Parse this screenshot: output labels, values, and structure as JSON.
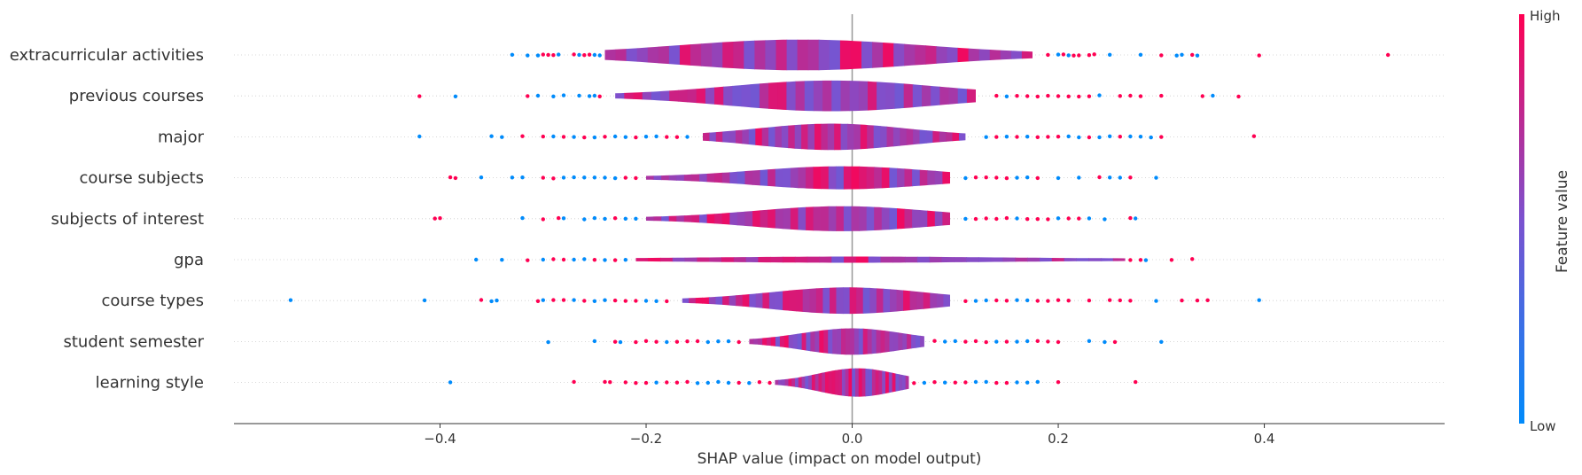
{
  "chart_data": {
    "type": "violin",
    "xlabel": "SHAP value (impact on model output)",
    "xlim": [
      -0.6,
      0.575
    ],
    "x_ticks": [
      -0.4,
      -0.2,
      0.0,
      0.2,
      0.4
    ],
    "x_tick_labels": [
      "−0.4",
      "−0.2",
      "0.0",
      "0.2",
      "0.4"
    ],
    "colorbar": {
      "label": "Feature value",
      "high_label": "High",
      "low_label": "Low",
      "high_color": "#ff0052",
      "low_color": "#008bfb",
      "mid_color": "#7c52cf"
    },
    "features": [
      {
        "name": "extracurricular activities",
        "min": -0.33,
        "max": 0.52,
        "q_low": -0.24,
        "q_high": 0.175,
        "width": 0.85,
        "center": -0.05,
        "outliers": [
          -0.33,
          -0.315,
          -0.305,
          -0.3,
          -0.295,
          -0.29,
          -0.285,
          -0.27,
          -0.265,
          -0.26,
          -0.255,
          -0.25,
          -0.245,
          0.19,
          0.2,
          0.205,
          0.21,
          0.215,
          0.22,
          0.23,
          0.235,
          0.25,
          0.28,
          0.3,
          0.315,
          0.32,
          0.33,
          0.335,
          0.395,
          0.52
        ]
      },
      {
        "name": "previous courses",
        "min": -0.42,
        "max": 0.375,
        "q_low": -0.23,
        "q_high": 0.12,
        "width": 0.85,
        "center": -0.02,
        "outliers": [
          -0.42,
          -0.385,
          -0.315,
          -0.305,
          -0.29,
          -0.28,
          -0.265,
          -0.255,
          -0.25,
          -0.245,
          0.14,
          0.15,
          0.16,
          0.17,
          0.18,
          0.19,
          0.2,
          0.21,
          0.22,
          0.23,
          0.24,
          0.26,
          0.27,
          0.28,
          0.3,
          0.34,
          0.35,
          0.375
        ]
      },
      {
        "name": "major",
        "min": -0.42,
        "max": 0.39,
        "q_low": -0.145,
        "q_high": 0.11,
        "width": 0.72,
        "center": -0.02,
        "outliers": [
          -0.42,
          -0.35,
          -0.34,
          -0.32,
          -0.3,
          -0.29,
          -0.28,
          -0.27,
          -0.26,
          -0.25,
          -0.24,
          -0.23,
          -0.22,
          -0.21,
          -0.2,
          -0.19,
          -0.18,
          -0.17,
          -0.16,
          0.13,
          0.14,
          0.15,
          0.16,
          0.17,
          0.18,
          0.19,
          0.2,
          0.21,
          0.22,
          0.23,
          0.24,
          0.25,
          0.26,
          0.27,
          0.28,
          0.29,
          0.3,
          0.39
        ]
      },
      {
        "name": "course subjects",
        "min": -0.39,
        "max": 0.295,
        "q_low": -0.2,
        "q_high": 0.095,
        "width": 0.62,
        "center": -0.01,
        "outliers": [
          -0.39,
          -0.385,
          -0.36,
          -0.33,
          -0.32,
          -0.3,
          -0.29,
          -0.28,
          -0.27,
          -0.26,
          -0.25,
          -0.24,
          -0.23,
          -0.22,
          -0.21,
          0.11,
          0.12,
          0.13,
          0.14,
          0.15,
          0.16,
          0.17,
          0.18,
          0.2,
          0.22,
          0.24,
          0.25,
          0.26,
          0.27,
          0.295
        ]
      },
      {
        "name": "subjects of interest",
        "min": -0.405,
        "max": 0.275,
        "q_low": -0.2,
        "q_high": 0.095,
        "width": 0.68,
        "center": -0.01,
        "outliers": [
          -0.405,
          -0.4,
          -0.32,
          -0.3,
          -0.285,
          -0.28,
          -0.26,
          -0.25,
          -0.24,
          -0.23,
          -0.22,
          -0.21,
          0.11,
          0.12,
          0.13,
          0.14,
          0.15,
          0.16,
          0.17,
          0.18,
          0.19,
          0.2,
          0.21,
          0.22,
          0.23,
          0.245,
          0.27,
          0.275
        ]
      },
      {
        "name": "gpa",
        "min": -0.365,
        "max": 0.33,
        "q_low": -0.21,
        "q_high": 0.265,
        "width": 0.12,
        "center": 0.0,
        "outliers": [
          -0.365,
          -0.34,
          -0.315,
          -0.3,
          -0.29,
          -0.28,
          -0.27,
          -0.26,
          -0.25,
          -0.24,
          -0.23,
          -0.22,
          0.27,
          0.28,
          0.285,
          0.31,
          0.33
        ]
      },
      {
        "name": "course types",
        "min": -0.545,
        "max": 0.395,
        "q_low": -0.165,
        "q_high": 0.095,
        "width": 0.72,
        "center": -0.005,
        "outliers": [
          -0.545,
          -0.415,
          -0.36,
          -0.35,
          -0.345,
          -0.305,
          -0.3,
          -0.29,
          -0.28,
          -0.27,
          -0.26,
          -0.25,
          -0.24,
          -0.23,
          -0.22,
          -0.21,
          -0.2,
          -0.19,
          -0.18,
          0.11,
          0.12,
          0.13,
          0.14,
          0.15,
          0.16,
          0.17,
          0.18,
          0.19,
          0.2,
          0.21,
          0.23,
          0.25,
          0.26,
          0.27,
          0.295,
          0.32,
          0.335,
          0.345,
          0.395
        ]
      },
      {
        "name": "student semester",
        "min": -0.295,
        "max": 0.3,
        "q_low": -0.1,
        "q_high": 0.07,
        "width": 0.72,
        "center": 0.0,
        "outliers": [
          -0.295,
          -0.25,
          -0.23,
          -0.225,
          -0.21,
          -0.2,
          -0.19,
          -0.18,
          -0.17,
          -0.16,
          -0.15,
          -0.14,
          -0.13,
          -0.12,
          -0.11,
          0.08,
          0.09,
          0.1,
          0.11,
          0.12,
          0.13,
          0.14,
          0.15,
          0.16,
          0.17,
          0.18,
          0.19,
          0.2,
          0.23,
          0.245,
          0.255,
          0.3
        ]
      },
      {
        "name": "learning style",
        "min": -0.39,
        "max": 0.275,
        "q_low": -0.075,
        "q_high": 0.055,
        "width": 0.78,
        "center": 0.005,
        "outliers": [
          -0.39,
          -0.27,
          -0.24,
          -0.235,
          -0.22,
          -0.21,
          -0.2,
          -0.19,
          -0.18,
          -0.17,
          -0.16,
          -0.15,
          -0.14,
          -0.13,
          -0.12,
          -0.11,
          -0.1,
          -0.09,
          -0.08,
          0.06,
          0.07,
          0.08,
          0.09,
          0.1,
          0.11,
          0.12,
          0.13,
          0.14,
          0.15,
          0.16,
          0.17,
          0.18,
          0.2,
          0.275
        ]
      }
    ]
  }
}
